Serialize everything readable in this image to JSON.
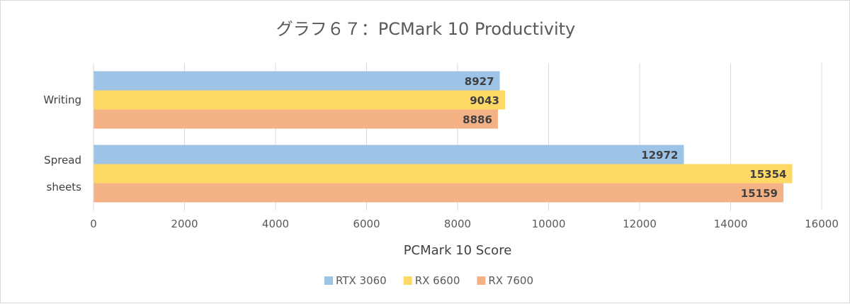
{
  "chart_data": {
    "type": "bar",
    "orientation": "horizontal",
    "title": "グラフ６７：PCMark 10 Productivity",
    "xlabel": "PCMark 10 Score",
    "ylabel": "",
    "xlim": [
      0,
      16000
    ],
    "xticks": [
      0,
      2000,
      4000,
      6000,
      8000,
      10000,
      12000,
      14000,
      16000
    ],
    "grid": true,
    "legend_position": "bottom",
    "categories": [
      {
        "label_lines": [
          "Writing"
        ]
      },
      {
        "label_lines": [
          "Spread",
          "sheets"
        ]
      }
    ],
    "series": [
      {
        "name": "RTX 3060",
        "color": "#9dc3e6",
        "values": [
          8927,
          12972
        ]
      },
      {
        "name": "RX 6600",
        "color": "#ffd966",
        "values": [
          9043,
          15354
        ]
      },
      {
        "name": "RX 7600",
        "color": "#f4b183",
        "values": [
          8886,
          15159
        ]
      }
    ]
  }
}
